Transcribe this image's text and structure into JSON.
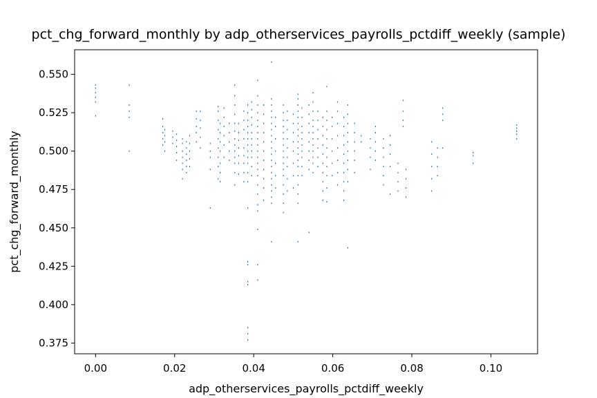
{
  "chart_data": {
    "type": "scatter",
    "title": "pct_chg_forward_monthly by adp_otherservices_payrolls_pctdiff_weekly (sample)",
    "xlabel": "adp_otherservices_payrolls_pctdiff_weekly",
    "ylabel": "pct_chg_forward_monthly",
    "xlim": [
      -0.0053,
      0.1118
    ],
    "ylim": [
      0.368,
      0.566
    ],
    "xticks": [
      0.0,
      0.02,
      0.04,
      0.06,
      0.08,
      0.1
    ],
    "xtick_labels": [
      "0.00",
      "0.02",
      "0.04",
      "0.06",
      "0.08",
      "0.10"
    ],
    "yticks": [
      0.375,
      0.4,
      0.425,
      0.45,
      0.475,
      0.5,
      0.525,
      0.55
    ],
    "ytick_labels": [
      "0.375",
      "0.400",
      "0.425",
      "0.450",
      "0.475",
      "0.500",
      "0.525",
      "0.550"
    ],
    "grid": false,
    "legend": "none",
    "marker_color": "#1f77b4",
    "point_columns": [
      {
        "x": 0.0,
        "y": [
          0.523,
          0.532,
          0.535,
          0.538,
          0.541,
          0.543
        ]
      },
      {
        "x": 0.0085,
        "y": [
          0.5,
          0.522,
          0.526,
          0.53,
          0.543
        ]
      },
      {
        "x": 0.017,
        "y": [
          0.504,
          0.508,
          0.512,
          0.516,
          0.521
        ]
      },
      {
        "x": 0.0175,
        "y": [
          0.5,
          0.506,
          0.51,
          0.514
        ]
      },
      {
        "x": 0.0195,
        "y": [
          0.505,
          0.509,
          0.513
        ]
      },
      {
        "x": 0.0205,
        "y": [
          0.494,
          0.499,
          0.503,
          0.507,
          0.511
        ]
      },
      {
        "x": 0.022,
        "y": [
          0.482,
          0.488,
          0.492,
          0.496,
          0.5,
          0.505,
          0.508
        ]
      },
      {
        "x": 0.023,
        "y": [
          0.486,
          0.49,
          0.494,
          0.498,
          0.502,
          0.506
        ]
      },
      {
        "x": 0.0238,
        "y": [
          0.49,
          0.495,
          0.5,
          0.505,
          0.51
        ]
      },
      {
        "x": 0.0255,
        "y": [
          0.506,
          0.512,
          0.516,
          0.521,
          0.526
        ]
      },
      {
        "x": 0.0265,
        "y": [
          0.502,
          0.509,
          0.515,
          0.52,
          0.526
        ]
      },
      {
        "x": 0.029,
        "y": [
          0.463,
          0.488,
          0.496,
          0.5,
          0.505
        ]
      },
      {
        "x": 0.031,
        "y": [
          0.482,
          0.49,
          0.496,
          0.502,
          0.508,
          0.514,
          0.52,
          0.526,
          0.529
        ]
      },
      {
        "x": 0.0315,
        "y": [
          0.48,
          0.486,
          0.492,
          0.5,
          0.506,
          0.512,
          0.518
        ]
      },
      {
        "x": 0.0325,
        "y": [
          0.496,
          0.504,
          0.51,
          0.516,
          0.522,
          0.528
        ]
      },
      {
        "x": 0.0338,
        "y": [
          0.494,
          0.5,
          0.506,
          0.512,
          0.518
        ]
      },
      {
        "x": 0.0352,
        "y": [
          0.478,
          0.486,
          0.492,
          0.496,
          0.5,
          0.504,
          0.508,
          0.513,
          0.518,
          0.524,
          0.53,
          0.536,
          0.543
        ]
      },
      {
        "x": 0.0362,
        "y": [
          0.485,
          0.492,
          0.497,
          0.502,
          0.507,
          0.512,
          0.518
        ]
      },
      {
        "x": 0.0375,
        "y": [
          0.48,
          0.486,
          0.492,
          0.497,
          0.502,
          0.508,
          0.514,
          0.52,
          0.526
        ]
      },
      {
        "x": 0.0385,
        "y": [
          0.377,
          0.381,
          0.385,
          0.413,
          0.415,
          0.426,
          0.428,
          0.463,
          0.48,
          0.486,
          0.492,
          0.496,
          0.5,
          0.504,
          0.508,
          0.512,
          0.516,
          0.52,
          0.525,
          0.53
        ]
      },
      {
        "x": 0.0395,
        "y": [
          0.484,
          0.49,
          0.496,
          0.5,
          0.504,
          0.508,
          0.512,
          0.517,
          0.522,
          0.527,
          0.532
        ]
      },
      {
        "x": 0.041,
        "y": [
          0.416,
          0.426,
          0.449,
          0.461,
          0.465,
          0.472,
          0.478,
          0.484,
          0.488,
          0.492,
          0.496,
          0.5,
          0.504,
          0.508,
          0.512,
          0.516,
          0.52,
          0.525,
          0.53,
          0.536,
          0.546
        ]
      },
      {
        "x": 0.0425,
        "y": [
          0.468,
          0.476,
          0.482,
          0.488,
          0.494,
          0.5,
          0.506,
          0.512,
          0.518,
          0.524,
          0.53
        ]
      },
      {
        "x": 0.0445,
        "y": [
          0.441,
          0.466,
          0.47,
          0.474,
          0.478,
          0.482,
          0.486,
          0.49,
          0.494,
          0.498,
          0.502,
          0.506,
          0.51,
          0.514,
          0.518,
          0.522,
          0.526,
          0.53,
          0.534,
          0.558
        ]
      },
      {
        "x": 0.0455,
        "y": [
          0.476,
          0.484,
          0.492,
          0.5,
          0.508,
          0.516,
          0.522
        ]
      },
      {
        "x": 0.0475,
        "y": [
          0.46,
          0.466,
          0.472,
          0.478,
          0.484,
          0.488,
          0.492,
          0.496,
          0.5,
          0.504,
          0.508,
          0.512,
          0.516,
          0.52,
          0.525,
          0.53
        ]
      },
      {
        "x": 0.0485,
        "y": [
          0.474,
          0.482,
          0.49,
          0.496,
          0.502,
          0.508,
          0.514,
          0.52,
          0.526
        ]
      },
      {
        "x": 0.05,
        "y": [
          0.476,
          0.484,
          0.492,
          0.5,
          0.506,
          0.512,
          0.518,
          0.524
        ]
      },
      {
        "x": 0.0512,
        "y": [
          0.441,
          0.466,
          0.472,
          0.478,
          0.484,
          0.49,
          0.494,
          0.498,
          0.502,
          0.506,
          0.51,
          0.514,
          0.518,
          0.522,
          0.526,
          0.53,
          0.534,
          0.537
        ]
      },
      {
        "x": 0.0522,
        "y": [
          0.484,
          0.49,
          0.496,
          0.5,
          0.504,
          0.508,
          0.512,
          0.516,
          0.522,
          0.528
        ]
      },
      {
        "x": 0.054,
        "y": [
          0.447,
          0.488,
          0.494,
          0.5,
          0.506,
          0.512,
          0.518,
          0.524,
          0.53
        ]
      },
      {
        "x": 0.055,
        "y": [
          0.486,
          0.492,
          0.496,
          0.5,
          0.504,
          0.508,
          0.512,
          0.516,
          0.52,
          0.526,
          0.532,
          0.538
        ]
      },
      {
        "x": 0.0562,
        "y": [
          0.49,
          0.496,
          0.502,
          0.508,
          0.514,
          0.52,
          0.526
        ]
      },
      {
        "x": 0.0575,
        "y": [
          0.468,
          0.474,
          0.48,
          0.486,
          0.492,
          0.498,
          0.504,
          0.51,
          0.516,
          0.522
        ]
      },
      {
        "x": 0.0585,
        "y": [
          0.467,
          0.476,
          0.484,
          0.49,
          0.496,
          0.502,
          0.508,
          0.514,
          0.52,
          0.526,
          0.542
        ]
      },
      {
        "x": 0.0598,
        "y": [
          0.484,
          0.492,
          0.5,
          0.508,
          0.516,
          0.522
        ]
      },
      {
        "x": 0.0612,
        "y": [
          0.478,
          0.486,
          0.494,
          0.502,
          0.51,
          0.518,
          0.526,
          0.532
        ]
      },
      {
        "x": 0.0628,
        "y": [
          0.468,
          0.474,
          0.48,
          0.486,
          0.492,
          0.498,
          0.504,
          0.51,
          0.516,
          0.522
        ]
      },
      {
        "x": 0.0638,
        "y": [
          0.437,
          0.48,
          0.488,
          0.494,
          0.5,
          0.506,
          0.512,
          0.518,
          0.524,
          0.53
        ]
      },
      {
        "x": 0.0655,
        "y": [
          0.486,
          0.494,
          0.5,
          0.506,
          0.512,
          0.518
        ]
      },
      {
        "x": 0.0672,
        "y": [
          0.506,
          0.51
        ]
      },
      {
        "x": 0.0695,
        "y": [
          0.488,
          0.496,
          0.502,
          0.508
        ]
      },
      {
        "x": 0.0708,
        "y": [
          0.494,
          0.5,
          0.506,
          0.512,
          0.516
        ]
      },
      {
        "x": 0.0728,
        "y": [
          0.478,
          0.484,
          0.49,
          0.496,
          0.502,
          0.508
        ]
      },
      {
        "x": 0.0745,
        "y": [
          0.472,
          0.49,
          0.498,
          0.504,
          0.51
        ]
      },
      {
        "x": 0.0765,
        "y": [
          0.474,
          0.48,
          0.486,
          0.492
        ]
      },
      {
        "x": 0.0778,
        "y": [
          0.516,
          0.52,
          0.526,
          0.533
        ]
      },
      {
        "x": 0.0785,
        "y": [
          0.47,
          0.476,
          0.482,
          0.488
        ]
      },
      {
        "x": 0.085,
        "y": [
          0.474,
          0.482,
          0.49,
          0.498,
          0.506
        ]
      },
      {
        "x": 0.0865,
        "y": [
          0.484,
          0.49,
          0.496,
          0.502
        ]
      },
      {
        "x": 0.0878,
        "y": [
          0.502,
          0.52,
          0.524,
          0.528
        ]
      },
      {
        "x": 0.0955,
        "y": [
          0.492,
          0.497,
          0.499
        ]
      },
      {
        "x": 0.1065,
        "y": [
          0.508,
          0.511,
          0.513,
          0.515,
          0.517
        ]
      }
    ]
  }
}
